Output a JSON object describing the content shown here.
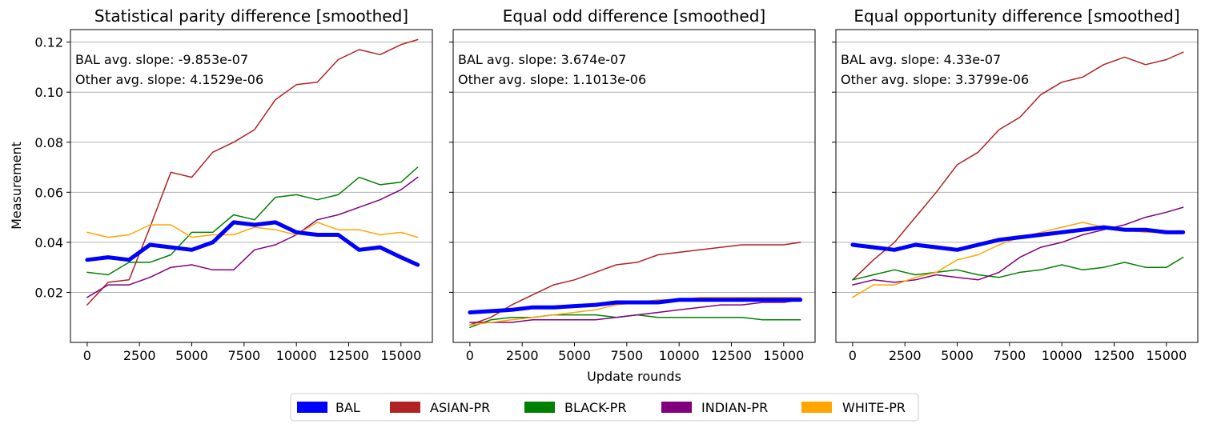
{
  "figure": {
    "ylabel": "Measurement",
    "xlabel": "Update rounds",
    "ylim": [
      0.0,
      0.125
    ],
    "yticks": [
      "0.02",
      "0.04",
      "0.06",
      "0.08",
      "0.10",
      "0.12"
    ],
    "ytick_values": [
      0.02,
      0.04,
      0.06,
      0.08,
      0.1,
      0.12
    ],
    "xlim": [
      -800,
      16500
    ],
    "xticks": [
      "0",
      "2500",
      "5000",
      "7500",
      "10000",
      "12500",
      "15000"
    ],
    "xtick_values": [
      0,
      2500,
      5000,
      7500,
      10000,
      12500,
      15000
    ],
    "grid": "horizontal",
    "legend_position": "bottom-center"
  },
  "legend": [
    {
      "name": "BAL",
      "color": "#0000ff"
    },
    {
      "name": "ASIAN-PR",
      "color": "#b22222"
    },
    {
      "name": "BLACK-PR",
      "color": "#008000"
    },
    {
      "name": "INDIAN-PR",
      "color": "#800080"
    },
    {
      "name": "WHITE-PR",
      "color": "#ffa500"
    }
  ],
  "panels": [
    {
      "title": "Statistical parity difference [smoothed]",
      "annot1": "BAL avg. slope: -9.853e-07",
      "annot2": "Other avg. slope: 4.1529e-06"
    },
    {
      "title": "Equal odd difference [smoothed]",
      "annot1": "BAL avg. slope: 3.674e-07",
      "annot2": "Other avg. slope: 1.1013e-06"
    },
    {
      "title": "Equal opportunity difference [smoothed]",
      "annot1": "BAL avg. slope: 4.33e-07",
      "annot2": "Other avg. slope: 3.3799e-06"
    }
  ],
  "chart_data": [
    {
      "type": "line",
      "title": "Statistical parity difference [smoothed]",
      "xlabel": "",
      "ylabel": "Measurement",
      "x": [
        0,
        1000,
        2000,
        3000,
        4000,
        5000,
        6000,
        7000,
        8000,
        9000,
        10000,
        11000,
        12000,
        13000,
        14000,
        15000,
        15800
      ],
      "series": [
        {
          "name": "BAL",
          "color": "#0000ff",
          "values": [
            0.033,
            0.034,
            0.033,
            0.039,
            0.038,
            0.037,
            0.04,
            0.048,
            0.047,
            0.048,
            0.044,
            0.043,
            0.043,
            0.037,
            0.038,
            0.034,
            0.031
          ]
        },
        {
          "name": "ASIAN-PR",
          "color": "#b22222",
          "values": [
            0.015,
            0.024,
            0.025,
            0.046,
            0.068,
            0.066,
            0.076,
            0.08,
            0.085,
            0.097,
            0.103,
            0.104,
            0.113,
            0.117,
            0.115,
            0.119,
            0.121
          ]
        },
        {
          "name": "BLACK-PR",
          "color": "#008000",
          "values": [
            0.028,
            0.027,
            0.032,
            0.032,
            0.035,
            0.044,
            0.044,
            0.051,
            0.049,
            0.058,
            0.059,
            0.057,
            0.059,
            0.066,
            0.063,
            0.064,
            0.07
          ]
        },
        {
          "name": "INDIAN-PR",
          "color": "#800080",
          "values": [
            0.018,
            0.023,
            0.023,
            0.026,
            0.03,
            0.031,
            0.029,
            0.029,
            0.037,
            0.039,
            0.043,
            0.049,
            0.051,
            0.054,
            0.057,
            0.061,
            0.066
          ]
        },
        {
          "name": "WHITE-PR",
          "color": "#ffa500",
          "values": [
            0.044,
            0.042,
            0.043,
            0.047,
            0.047,
            0.042,
            0.043,
            0.043,
            0.046,
            0.045,
            0.043,
            0.048,
            0.045,
            0.045,
            0.043,
            0.044,
            0.042
          ]
        }
      ]
    },
    {
      "type": "line",
      "title": "Equal odd difference [smoothed]",
      "xlabel": "Update rounds",
      "ylabel": "",
      "x": [
        0,
        1000,
        2000,
        3000,
        4000,
        5000,
        6000,
        7000,
        8000,
        9000,
        10000,
        11000,
        12000,
        13000,
        14000,
        15000,
        15800
      ],
      "series": [
        {
          "name": "BAL",
          "color": "#0000ff",
          "values": [
            0.012,
            0.0125,
            0.013,
            0.014,
            0.014,
            0.0145,
            0.015,
            0.016,
            0.016,
            0.016,
            0.017,
            0.017,
            0.017,
            0.017,
            0.017,
            0.017,
            0.017
          ]
        },
        {
          "name": "ASIAN-PR",
          "color": "#b22222",
          "values": [
            0.007,
            0.01,
            0.015,
            0.019,
            0.023,
            0.025,
            0.028,
            0.031,
            0.032,
            0.035,
            0.036,
            0.037,
            0.038,
            0.039,
            0.039,
            0.039,
            0.04
          ]
        },
        {
          "name": "BLACK-PR",
          "color": "#008000",
          "values": [
            0.006,
            0.009,
            0.01,
            0.01,
            0.011,
            0.011,
            0.011,
            0.01,
            0.011,
            0.01,
            0.01,
            0.01,
            0.01,
            0.01,
            0.009,
            0.009,
            0.009
          ]
        },
        {
          "name": "INDIAN-PR",
          "color": "#800080",
          "values": [
            0.008,
            0.008,
            0.008,
            0.009,
            0.009,
            0.009,
            0.009,
            0.01,
            0.011,
            0.012,
            0.013,
            0.014,
            0.015,
            0.015,
            0.016,
            0.016,
            0.017
          ]
        },
        {
          "name": "WHITE-PR",
          "color": "#ffa500",
          "values": [
            0.007,
            0.008,
            0.009,
            0.01,
            0.011,
            0.012,
            0.013,
            0.015,
            0.016,
            0.017,
            0.017,
            0.018,
            0.018,
            0.018,
            0.018,
            0.018,
            0.018
          ]
        }
      ]
    },
    {
      "type": "line",
      "title": "Equal opportunity difference [smoothed]",
      "xlabel": "",
      "ylabel": "",
      "x": [
        0,
        1000,
        2000,
        3000,
        4000,
        5000,
        6000,
        7000,
        8000,
        9000,
        10000,
        11000,
        12000,
        13000,
        14000,
        15000,
        15800
      ],
      "series": [
        {
          "name": "BAL",
          "color": "#0000ff",
          "values": [
            0.039,
            0.038,
            0.037,
            0.039,
            0.038,
            0.037,
            0.039,
            0.041,
            0.042,
            0.043,
            0.044,
            0.045,
            0.046,
            0.045,
            0.045,
            0.044,
            0.044
          ]
        },
        {
          "name": "ASIAN-PR",
          "color": "#b22222",
          "values": [
            0.025,
            0.033,
            0.04,
            0.05,
            0.06,
            0.071,
            0.076,
            0.085,
            0.09,
            0.099,
            0.104,
            0.106,
            0.111,
            0.114,
            0.111,
            0.113,
            0.116
          ]
        },
        {
          "name": "BLACK-PR",
          "color": "#008000",
          "values": [
            0.025,
            0.027,
            0.029,
            0.027,
            0.028,
            0.029,
            0.027,
            0.026,
            0.028,
            0.029,
            0.031,
            0.029,
            0.03,
            0.032,
            0.03,
            0.03,
            0.034
          ]
        },
        {
          "name": "INDIAN-PR",
          "color": "#800080",
          "values": [
            0.023,
            0.025,
            0.024,
            0.025,
            0.027,
            0.026,
            0.025,
            0.028,
            0.034,
            0.038,
            0.04,
            0.043,
            0.045,
            0.047,
            0.05,
            0.052,
            0.054
          ]
        },
        {
          "name": "WHITE-PR",
          "color": "#ffa500",
          "values": [
            0.018,
            0.023,
            0.023,
            0.026,
            0.028,
            0.033,
            0.035,
            0.039,
            0.042,
            0.044,
            0.046,
            0.048,
            0.046,
            0.045,
            0.044,
            0.044,
            0.044
          ]
        }
      ]
    }
  ]
}
